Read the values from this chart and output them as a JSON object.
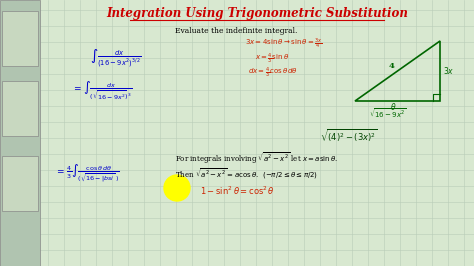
{
  "title": "Integration Using Trigonometric Substitution",
  "title_color": "#cc0000",
  "bg_color": "#d8e8d0",
  "grid_color": "#b8ccb8",
  "left_panel_color": "#c8d8c0",
  "subtitle": "Evaluate the indefinite integral.",
  "main_integral": "\\int \\frac{dx}{(16-9x^2)^{3/2}}",
  "step1": "= \\int \\frac{dx}{(\\sqrt{16-9x^2})^3}",
  "step2": "= \\frac{4}{3}\\int \\frac{\\cos\\theta\\, d\\theta}{(\\sqrt{16-|bsi}\\,)}",
  "red_sub1": "3x = 4\\sin\\theta \\rightarrow \\sin\\theta = \\frac{3x}{4}",
  "red_sub2": "x = \\frac{4}{3}\\sin\\theta",
  "red_sub3": "dx = \\frac{4}{3}\\cos\\theta\\, d\\theta",
  "triangle_label_hyp": "4",
  "triangle_label_opp": "3x",
  "triangle_label_adj": "\\sqrt{16-9x^2}",
  "triangle_label_angle": "\\theta",
  "bottom_expr": "\\sqrt{(4)^2-(3x)^2}",
  "note1": "For integrals involving $\\sqrt{a^2-x^2}$ let $x=a\\sin\\theta$.",
  "note2": "Then $\\sqrt{a^2-x^2}=a\\cos\\theta$.  $(-\\pi/2\\leq\\theta\\leq\\pi/2)$",
  "note3": "1 - \\sin^2\\theta = \\cos^2\\theta",
  "highlight_color": "#ffff00",
  "red_color": "#cc2200",
  "blue_color": "#0000cc",
  "green_color": "#006600",
  "dark_green": "#004400"
}
